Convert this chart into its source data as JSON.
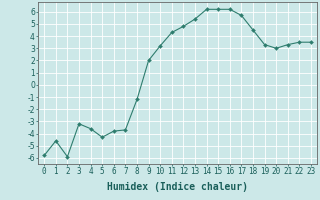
{
  "x": [
    0,
    1,
    2,
    3,
    4,
    5,
    6,
    7,
    8,
    9,
    10,
    11,
    12,
    13,
    14,
    15,
    16,
    17,
    18,
    19,
    20,
    21,
    22,
    23
  ],
  "y": [
    -5.8,
    -4.6,
    -5.9,
    -3.2,
    -3.6,
    -4.3,
    -3.8,
    -3.7,
    -1.2,
    2.0,
    3.2,
    4.3,
    4.8,
    5.4,
    6.2,
    6.2,
    6.2,
    5.7,
    4.5,
    3.3,
    3.0,
    3.3,
    3.5,
    3.5
  ],
  "line_color": "#2e7d6e",
  "marker": "D",
  "marker_size": 2.0,
  "bg_color": "#cce8e8",
  "grid_color": "#ffffff",
  "xlabel": "Humidex (Indice chaleur)",
  "xlabel_fontsize": 7,
  "tick_fontsize": 5.5,
  "yticks": [
    -6,
    -5,
    -4,
    -3,
    -2,
    -1,
    0,
    1,
    2,
    3,
    4,
    5,
    6
  ],
  "xticks": [
    0,
    1,
    2,
    3,
    4,
    5,
    6,
    7,
    8,
    9,
    10,
    11,
    12,
    13,
    14,
    15,
    16,
    17,
    18,
    19,
    20,
    21,
    22,
    23
  ],
  "ylim": [
    -6.5,
    6.8
  ],
  "xlim": [
    -0.5,
    23.5
  ]
}
